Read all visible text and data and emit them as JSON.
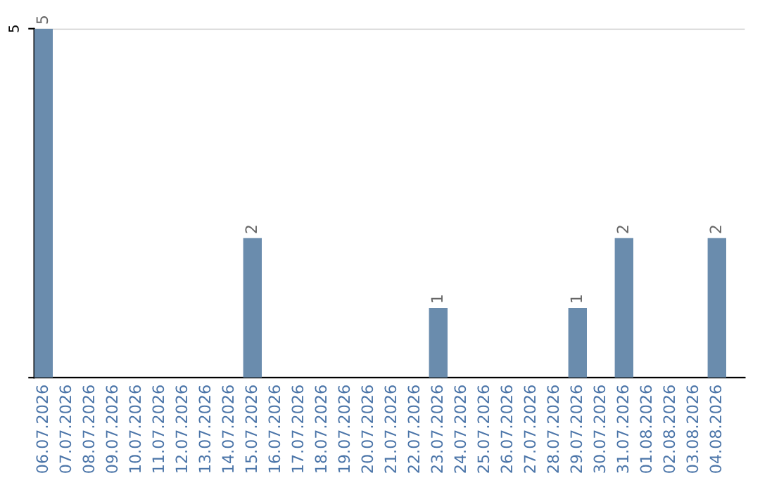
{
  "chart_data": {
    "type": "bar",
    "categories": [
      "06.07.2026",
      "07.07.2026",
      "08.07.2026",
      "09.07.2026",
      "10.07.2026",
      "11.07.2026",
      "12.07.2026",
      "13.07.2026",
      "14.07.2026",
      "15.07.2026",
      "16.07.2026",
      "17.07.2026",
      "18.07.2026",
      "19.07.2026",
      "20.07.2026",
      "21.07.2026",
      "22.07.2026",
      "23.07.2026",
      "24.07.2026",
      "25.07.2026",
      "26.07.2026",
      "27.07.2026",
      "28.07.2026",
      "29.07.2026",
      "30.07.2026",
      "31.07.2026",
      "01.08.2026",
      "02.08.2026",
      "03.08.2026",
      "04.08.2026"
    ],
    "values": [
      5,
      0,
      0,
      0,
      0,
      0,
      0,
      0,
      0,
      2,
      0,
      0,
      0,
      0,
      0,
      0,
      0,
      1,
      0,
      0,
      0,
      0,
      0,
      1,
      0,
      2,
      0,
      0,
      0,
      2
    ],
    "color": "#6a8cad",
    "ylim": [
      0,
      5
    ],
    "yticks": [
      {
        "value": 0,
        "label": null
      },
      5
    ],
    "grid": "y",
    "value_labels": [
      "5",
      null,
      null,
      null,
      null,
      null,
      null,
      null,
      null,
      "2",
      null,
      null,
      null,
      null,
      null,
      null,
      null,
      "1",
      null,
      null,
      null,
      null,
      null,
      "1",
      null,
      "2",
      null,
      null,
      null,
      "2"
    ]
  }
}
